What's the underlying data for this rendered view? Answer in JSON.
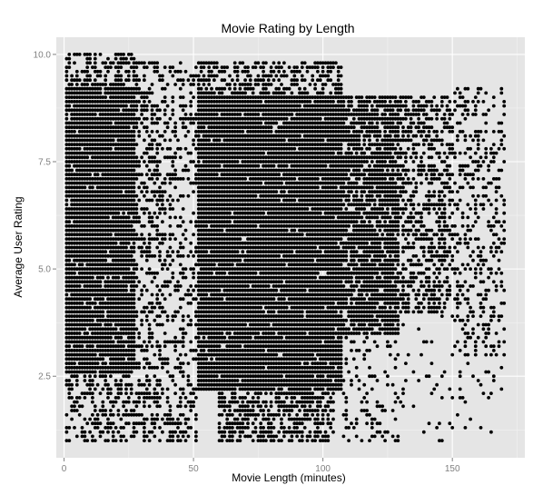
{
  "chart_data": {
    "type": "scatter",
    "title": "Movie Rating by Length",
    "xlabel": "Movie Length (minutes)",
    "ylabel": "Average User Rating",
    "xlim": [
      -3,
      178
    ],
    "ylim": [
      0.6,
      10.4
    ],
    "x_ticks": [
      0,
      50,
      100,
      150
    ],
    "x_tick_labels": [
      "0",
      "50",
      "100",
      "150"
    ],
    "y_ticks": [
      2.5,
      5.0,
      7.5,
      10.0
    ],
    "y_tick_labels": [
      "2.5",
      "5.0",
      "7.5",
      "10.0"
    ],
    "grid": true,
    "background": "#e5e5e5",
    "point_color": "#000000",
    "point_density": [
      {
        "x_from": 1,
        "x_to": 28,
        "y_from": 2.6,
        "y_to": 9.2,
        "density": 0.95
      },
      {
        "x_from": 1,
        "x_to": 28,
        "y_from": 9.2,
        "y_to": 10.0,
        "density": 0.55
      },
      {
        "x_from": 1,
        "x_to": 28,
        "y_from": 1.0,
        "y_to": 2.6,
        "density": 0.45
      },
      {
        "x_from": 28,
        "x_to": 40,
        "y_from": 1.0,
        "y_to": 9.8,
        "density": 0.4
      },
      {
        "x_from": 40,
        "x_to": 52,
        "y_from": 1.0,
        "y_to": 9.8,
        "density": 0.32
      },
      {
        "x_from": 52,
        "x_to": 108,
        "y_from": 2.2,
        "y_to": 9.0,
        "density": 0.96
      },
      {
        "x_from": 60,
        "x_to": 105,
        "y_from": 1.0,
        "y_to": 2.2,
        "density": 0.6
      },
      {
        "x_from": 52,
        "x_to": 108,
        "y_from": 9.0,
        "y_to": 9.8,
        "density": 0.55
      },
      {
        "x_from": 108,
        "x_to": 130,
        "y_from": 3.5,
        "y_to": 9.0,
        "density": 0.82
      },
      {
        "x_from": 108,
        "x_to": 130,
        "y_from": 1.0,
        "y_to": 3.5,
        "density": 0.22
      },
      {
        "x_from": 130,
        "x_to": 150,
        "y_from": 4.0,
        "y_to": 9.0,
        "density": 0.5
      },
      {
        "x_from": 150,
        "x_to": 171,
        "y_from": 3.0,
        "y_to": 9.2,
        "density": 0.28
      },
      {
        "x_from": 130,
        "x_to": 171,
        "y_from": 1.0,
        "y_to": 4.0,
        "density": 0.06
      }
    ]
  }
}
